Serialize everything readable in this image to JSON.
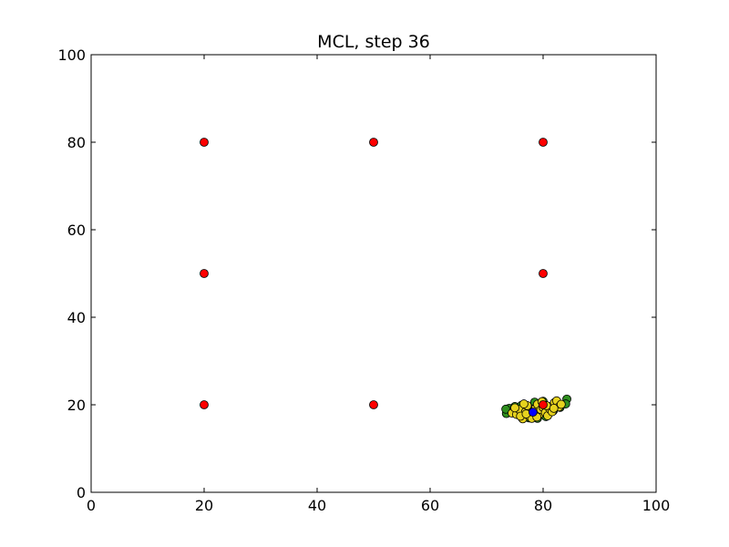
{
  "chart_data": {
    "type": "scatter",
    "title": "MCL, step 36",
    "xlabel": "",
    "ylabel": "",
    "xlim": [
      0,
      100
    ],
    "ylim": [
      0,
      100
    ],
    "xticks": [
      0,
      20,
      40,
      60,
      80,
      100
    ],
    "yticks": [
      0,
      20,
      40,
      60,
      80,
      100
    ],
    "grid": false,
    "series": [
      {
        "color": "#2f8f1f",
        "points": [
          [
            73.5,
            18.0
          ],
          [
            74.0,
            19.2
          ],
          [
            75.0,
            19.6
          ],
          [
            76.2,
            19.9
          ],
          [
            77.5,
            17.0
          ],
          [
            79.0,
            16.9
          ],
          [
            80.5,
            17.3
          ],
          [
            81.8,
            18.6
          ],
          [
            83.0,
            19.4
          ],
          [
            84.2,
            21.3
          ],
          [
            84.0,
            20.2
          ],
          [
            82.5,
            20.4
          ],
          [
            80.0,
            20.8
          ],
          [
            78.5,
            20.6
          ],
          [
            76.8,
            17.6
          ],
          [
            74.6,
            18.3
          ],
          [
            73.4,
            19.0
          ],
          [
            81.0,
            19.6
          ]
        ]
      },
      {
        "color": "#e6d21e",
        "points": [
          [
            74.5,
            18.1
          ],
          [
            75.3,
            17.8
          ],
          [
            75.8,
            18.9
          ],
          [
            76.4,
            16.8
          ],
          [
            76.9,
            18.4
          ],
          [
            77.2,
            19.8
          ],
          [
            77.6,
            17.3
          ],
          [
            78.0,
            16.9
          ],
          [
            78.3,
            18.6
          ],
          [
            78.7,
            19.3
          ],
          [
            79.0,
            20.1
          ],
          [
            79.3,
            17.8
          ],
          [
            79.6,
            18.9
          ],
          [
            80.0,
            19.4
          ],
          [
            80.4,
            18.2
          ],
          [
            80.8,
            17.5
          ],
          [
            81.2,
            19.0
          ],
          [
            81.6,
            18.4
          ],
          [
            82.0,
            20.5
          ],
          [
            82.4,
            20.9
          ],
          [
            82.8,
            19.5
          ],
          [
            83.2,
            20.1
          ],
          [
            75.0,
            19.3
          ],
          [
            76.0,
            17.4
          ],
          [
            77.0,
            17.9
          ],
          [
            78.9,
            17.2
          ],
          [
            79.8,
            20.7
          ],
          [
            80.6,
            19.8
          ],
          [
            81.9,
            19.2
          ],
          [
            76.6,
            20.2
          ]
        ]
      },
      {
        "color": "#0000ff",
        "points": [
          [
            78.2,
            18.3
          ]
        ]
      },
      {
        "color": "#ff0000",
        "points": [
          [
            20,
            80
          ],
          [
            50,
            80
          ],
          [
            80,
            80
          ],
          [
            20,
            50
          ],
          [
            80,
            50
          ],
          [
            20,
            20
          ],
          [
            50,
            20
          ],
          [
            80,
            20
          ]
        ]
      }
    ]
  }
}
